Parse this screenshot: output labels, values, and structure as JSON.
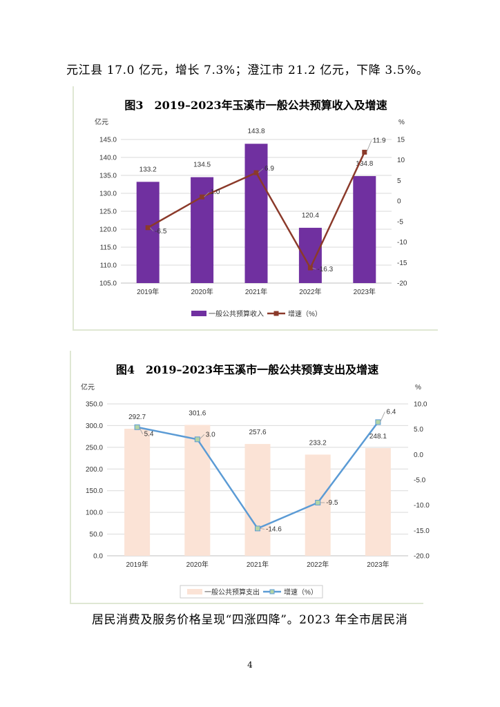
{
  "text": {
    "paragraph_top": "元江县 17.0 亿元，增长 7.3%；澄江市 21.2 亿元，下降 3.5%。",
    "paragraph_bottom": "居民消费及服务价格呈现“四涨四降”。2023 年全市居民消",
    "page_number": "4"
  },
  "colors": {
    "bar3": "#7030a0",
    "line3": "#8b3a2a",
    "bar4": "#fbe3d6",
    "line4": "#5b9bd5",
    "marker4": "#b4d4a5"
  },
  "chart_data": [
    {
      "type": "bar",
      "title": "图3　2019–2023年玉溪市一般公共预算收入及增速",
      "categories": [
        "2019年",
        "2020年",
        "2021年",
        "2022年",
        "2023年"
      ],
      "series": [
        {
          "name": "一般公共预算收入",
          "axis": "left",
          "type": "bar",
          "values": [
            133.2,
            134.5,
            143.8,
            120.4,
            134.8
          ],
          "labels": [
            "133.2",
            "134.5",
            "143.8",
            "120.4",
            "134.8"
          ]
        },
        {
          "name": "增速（%）",
          "axis": "right",
          "type": "line",
          "values": [
            -6.5,
            1.0,
            6.9,
            -16.3,
            11.9
          ],
          "labels": [
            "-6.5",
            "1.0",
            "6.9",
            "-16.3",
            "11.9"
          ]
        }
      ],
      "ylabel_left": "亿元",
      "ylabel_right": "%",
      "ylim_left": [
        105.0,
        145.0
      ],
      "ylim_right": [
        -20,
        15
      ],
      "yticks_left": [
        "105.0",
        "110.0",
        "115.0",
        "120.0",
        "125.0",
        "130.0",
        "135.0",
        "140.0",
        "145.0"
      ],
      "yticks_right": [
        "-20",
        "-15",
        "-10",
        "-5",
        "0",
        "5",
        "10",
        "15"
      ],
      "legend": [
        "一般公共预算收入",
        "增速（%）"
      ],
      "legend_position": "bottom"
    },
    {
      "type": "bar",
      "title": "图4　2019–2023年玉溪市一般公共预算支出及增速",
      "categories": [
        "2019年",
        "2020年",
        "2021年",
        "2022年",
        "2023年"
      ],
      "series": [
        {
          "name": "一般公共预算支出",
          "axis": "left",
          "type": "bar",
          "values": [
            292.7,
            301.6,
            257.6,
            233.2,
            248.1
          ],
          "labels": [
            "292.7",
            "301.6",
            "257.6",
            "233.2",
            "248.1"
          ]
        },
        {
          "name": "增速（%）",
          "axis": "right",
          "type": "line",
          "values": [
            5.4,
            3.0,
            -14.6,
            -9.5,
            6.4
          ],
          "labels": [
            "5.4",
            "3.0",
            "-14.6",
            "-9.5",
            "6.4"
          ]
        }
      ],
      "ylabel_left": "亿元",
      "ylabel_right": "%",
      "ylim_left": [
        0.0,
        350.0
      ],
      "ylim_right": [
        -20.0,
        10.0
      ],
      "yticks_left": [
        "0.0",
        "50.0",
        "100.0",
        "150.0",
        "200.0",
        "250.0",
        "300.0",
        "350.0"
      ],
      "yticks_right": [
        "-20.0",
        "-15.0",
        "-10.0",
        "-5.0",
        "0.0",
        "5.0",
        "10.0"
      ],
      "legend": [
        "一般公共预算支出",
        "增速（%）"
      ],
      "legend_position": "bottom"
    }
  ]
}
